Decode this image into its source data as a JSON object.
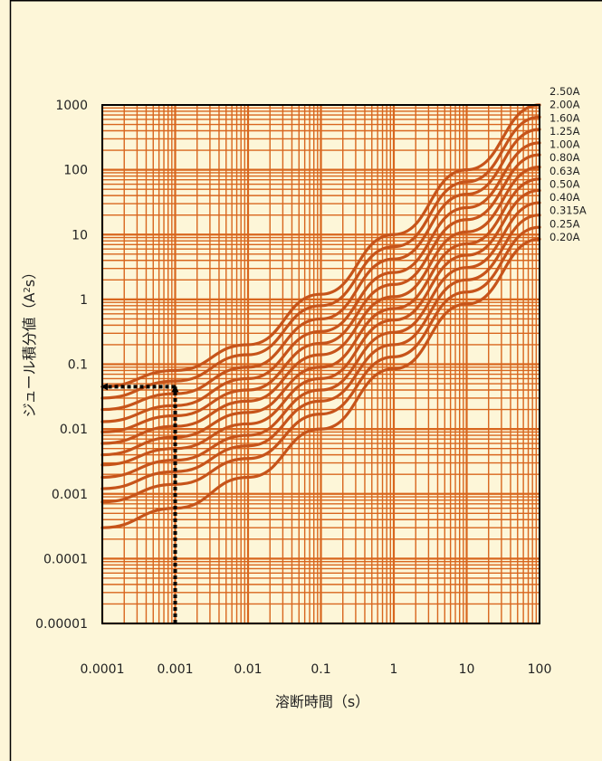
{
  "colors": {
    "background": "#fdf6d8",
    "grid": "#d8661e",
    "curve": "#c6541a",
    "frame": "#000000",
    "arrow": "#000000"
  },
  "chart_data": {
    "type": "line",
    "x_scale": "log",
    "y_scale": "log",
    "xlim": [
      0.0001,
      100
    ],
    "ylim": [
      1e-05,
      1000
    ],
    "xlabel": "溶断時間（s）",
    "ylabel": "ジュール積分値（A²s）",
    "ylabel_parts": {
      "main": "ジュール積分値（A",
      "sup": "2",
      "tail": "s）"
    },
    "x_tick_values": [
      0.0001,
      0.001,
      0.01,
      0.1,
      1,
      10,
      100
    ],
    "x_tick_labels": [
      "0.0001",
      "0.001",
      "0.01",
      "0.1",
      "1",
      "10",
      "100"
    ],
    "y_tick_values": [
      1e-05,
      0.0001,
      0.001,
      0.01,
      0.1,
      1,
      10,
      100,
      1000
    ],
    "y_tick_labels": [
      "0.00001",
      "0.0001",
      "0.001",
      "0.01",
      "0.1",
      "1",
      "10",
      "100",
      "1000"
    ],
    "grid": true,
    "legend_position": "right",
    "series": [
      {
        "name": "2.50A",
        "x": [
          0.0001,
          0.001,
          0.01,
          0.1,
          1,
          10,
          100
        ],
        "y": [
          0.045,
          0.08,
          0.2,
          1.2,
          10,
          100,
          1000
        ]
      },
      {
        "name": "2.00A",
        "x": [
          0.0001,
          0.001,
          0.01,
          0.1,
          1,
          10,
          100
        ],
        "y": [
          0.03,
          0.055,
          0.14,
          0.8,
          6.5,
          65,
          650
        ]
      },
      {
        "name": "1.60A",
        "x": [
          0.0001,
          0.001,
          0.01,
          0.1,
          1,
          10,
          100
        ],
        "y": [
          0.02,
          0.035,
          0.09,
          0.5,
          4.2,
          42,
          420
        ]
      },
      {
        "name": "1.25A",
        "x": [
          0.0001,
          0.001,
          0.01,
          0.1,
          1,
          10,
          100
        ],
        "y": [
          0.013,
          0.023,
          0.06,
          0.32,
          2.6,
          26,
          260
        ]
      },
      {
        "name": "1.00A",
        "x": [
          0.0001,
          0.001,
          0.01,
          0.1,
          1,
          10,
          100
        ],
        "y": [
          0.009,
          0.016,
          0.04,
          0.21,
          1.7,
          17,
          170
        ]
      },
      {
        "name": "0.80A",
        "x": [
          0.0001,
          0.001,
          0.01,
          0.1,
          1,
          10,
          100
        ],
        "y": [
          0.006,
          0.011,
          0.027,
          0.14,
          1.1,
          11,
          110
        ]
      },
      {
        "name": "0.63A",
        "x": [
          0.0001,
          0.001,
          0.01,
          0.1,
          1,
          10,
          100
        ],
        "y": [
          0.004,
          0.0075,
          0.018,
          0.09,
          0.72,
          7.2,
          72
        ]
      },
      {
        "name": "0.50A",
        "x": [
          0.0001,
          0.001,
          0.01,
          0.1,
          1,
          10,
          100
        ],
        "y": [
          0.0028,
          0.005,
          0.012,
          0.06,
          0.48,
          4.8,
          48
        ]
      },
      {
        "name": "0.40A",
        "x": [
          0.0001,
          0.001,
          0.01,
          0.1,
          1,
          10,
          100
        ],
        "y": [
          0.0018,
          0.0033,
          0.008,
          0.04,
          0.31,
          3.1,
          31
        ]
      },
      {
        "name": "0.315A",
        "x": [
          0.0001,
          0.001,
          0.01,
          0.1,
          1,
          10,
          100
        ],
        "y": [
          0.0012,
          0.0022,
          0.0055,
          0.027,
          0.2,
          2.0,
          20
        ]
      },
      {
        "name": "0.25A",
        "x": [
          0.0001,
          0.001,
          0.01,
          0.1,
          1,
          10,
          100
        ],
        "y": [
          0.00075,
          0.0014,
          0.0035,
          0.017,
          0.13,
          1.3,
          13
        ]
      },
      {
        "name": "0.20A",
        "x": [
          0.0001,
          0.001,
          0.01,
          0.1,
          1,
          10,
          100
        ],
        "y": [
          0.0003,
          0.0006,
          0.0018,
          0.01,
          0.085,
          0.85,
          8.5
        ]
      }
    ],
    "annotation_arrows": [
      {
        "x": [
          0.001,
          0.001
        ],
        "y": [
          1e-05,
          0.045
        ]
      },
      {
        "x": [
          0.001,
          0.0001
        ],
        "y": [
          0.045,
          0.045
        ]
      }
    ]
  }
}
